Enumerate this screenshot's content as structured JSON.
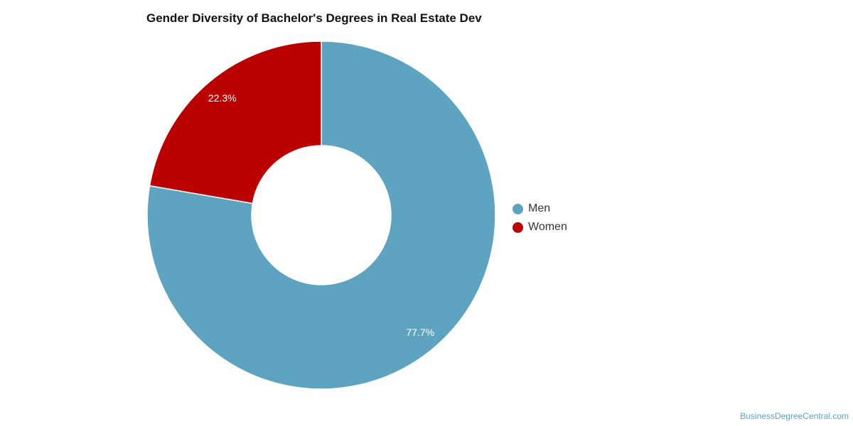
{
  "chart_data": {
    "type": "pie",
    "variant": "donut",
    "title": "Gender Diversity of Bachelor's Degrees in Real Estate Dev",
    "categories": [
      "Men",
      "Women"
    ],
    "values": [
      77.7,
      22.3
    ],
    "value_labels": [
      "77.7%",
      "22.3%"
    ],
    "colors": [
      "#5ea3c0",
      "#bb0000"
    ],
    "legend_position": "right",
    "start_angle_deg": 0,
    "direction": "clockwise"
  },
  "credit": "BusinessDegreeCentral.com"
}
